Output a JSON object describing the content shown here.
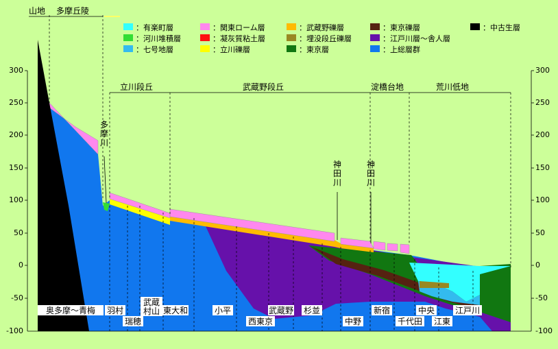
{
  "regions": {
    "top": [
      "山地",
      "多摩丘陵"
    ],
    "middle": [
      "立川段丘",
      "武蔵野段丘",
      "淀橋台地",
      "荒川低地"
    ]
  },
  "legend": [
    {
      "label": "：有楽町層",
      "color": "#33ffff"
    },
    {
      "label": "：河川堆積層",
      "color": "#33dd33"
    },
    {
      "label": "：七号地層",
      "color": "#33bbee"
    },
    {
      "label": "：関東ローム層",
      "color": "#ff88ee"
    },
    {
      "label": "：凝灰質粘土層",
      "color": "#ff1111"
    },
    {
      "label": "：立川礫層",
      "color": "#ffff00"
    },
    {
      "label": "：武蔵野礫層",
      "color": "#ffbb00"
    },
    {
      "label": "：埋没段丘礫層",
      "color": "#998822"
    },
    {
      "label": "：東京層",
      "color": "#117711"
    },
    {
      "label": "：東京礫層",
      "color": "#552211"
    },
    {
      "label": "：江戸川層～舎人層",
      "color": "#6611aa"
    },
    {
      "label": "：上総層群",
      "color": "#1177ee"
    },
    {
      "label": "：中古生層",
      "color": "#000000"
    }
  ],
  "axis": {
    "ticks": [
      "300",
      "250",
      "200",
      "150",
      "100",
      "50",
      "0",
      "-50",
      "-100"
    ]
  },
  "rivers": [
    "多摩川",
    "神田川",
    "神田川"
  ],
  "places_upper": [
    "奥多摩～青梅",
    "羽村",
    "武蔵村山",
    "東大和",
    "小平",
    "武蔵野",
    "杉並",
    "新宿",
    "中央",
    "江戸川"
  ],
  "places_lower": [
    "瑞穂",
    "西東京",
    "中野",
    "千代田",
    "江東"
  ]
}
